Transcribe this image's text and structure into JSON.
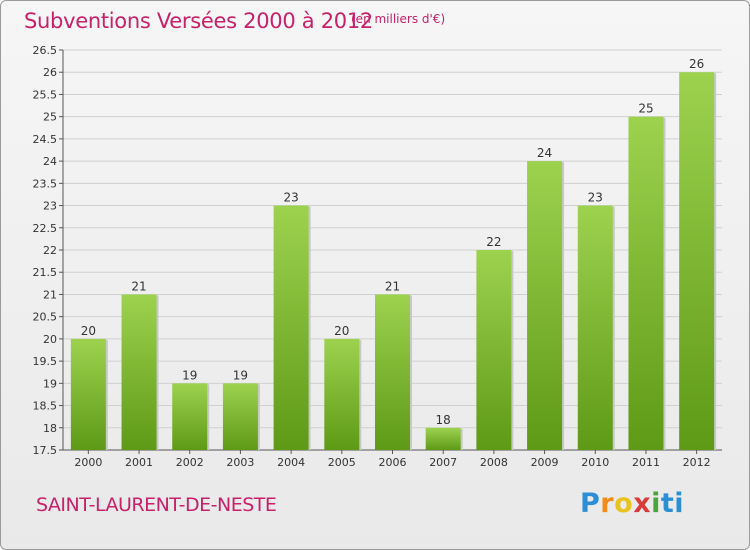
{
  "header": {
    "title": "Subventions Versées 2000 à 2012",
    "unit_note": "(en milliers d'€)"
  },
  "footer": {
    "commune": "SAINT-LAURENT-DE-NESTE",
    "logo_text": "Proxiti"
  },
  "colors": {
    "title": "#c8206a",
    "bar_top": "#9dd24f",
    "bar_bottom": "#5e9a16"
  },
  "chart_data": {
    "type": "bar",
    "categories": [
      "2000",
      "2001",
      "2002",
      "2003",
      "2004",
      "2005",
      "2006",
      "2007",
      "2008",
      "2009",
      "2010",
      "2011",
      "2012"
    ],
    "values": [
      20,
      21,
      19,
      19,
      23,
      20,
      21,
      18,
      22,
      24,
      23,
      25,
      26
    ],
    "data_labels": [
      "20",
      "21",
      "19",
      "19",
      "23",
      "20",
      "21",
      "18",
      "22",
      "24",
      "23",
      "25",
      "26"
    ],
    "ylim": [
      17.5,
      26.5
    ],
    "yticks": [
      "17.5",
      "18",
      "18.5",
      "19",
      "19.5",
      "20",
      "20.5",
      "21",
      "21.5",
      "22",
      "22.5",
      "23",
      "23.5",
      "24",
      "24.5",
      "25",
      "25.5",
      "26",
      "26.5"
    ],
    "grid": true,
    "xlabel": "",
    "ylabel": ""
  }
}
